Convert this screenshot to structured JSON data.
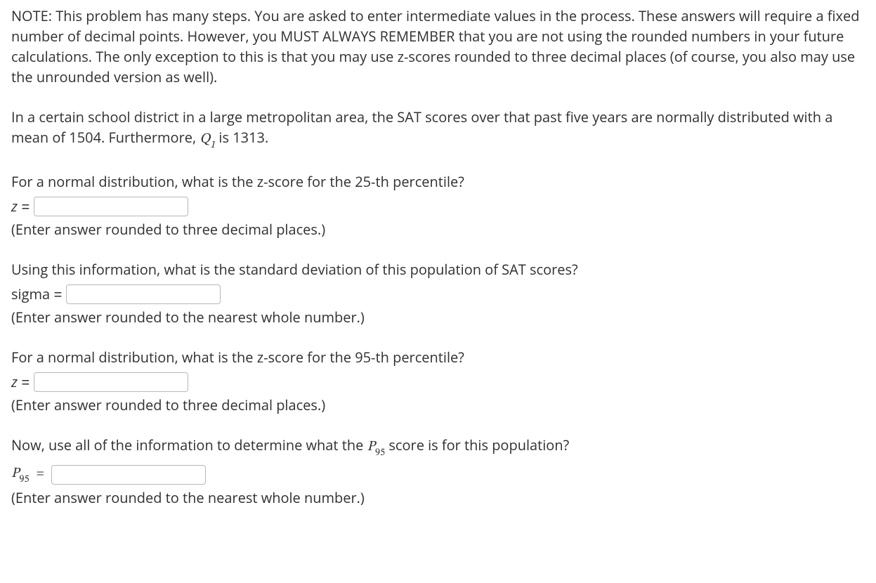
{
  "note": {
    "text": "NOTE: This problem has many steps. You are asked to enter intermediate values in the process. These answers will require a fixed number of decimal points. However, you MUST ALWAYS REMEMBER that you are not using the rounded numbers in your future calculations. The only exception to this is that you may use z-scores rounded to three decimal places (of course, you also may use the unrounded version as well)."
  },
  "scenario": {
    "prefix": "In a certain school district in a large metropolitan area, the SAT scores over that past five years are normally distributed with a mean of 1504. Furthermore, ",
    "q1_symbol_base": "Q",
    "q1_symbol_sub": "1",
    "suffix": " is 1313."
  },
  "q1": {
    "prompt": "For a normal distribution, what is the z-score for the 25-th percentile?",
    "label": "z",
    "eq": " = ",
    "hint": "(Enter answer rounded to three decimal places.)"
  },
  "q2": {
    "prompt": "Using this information, what is the standard deviation of this population of SAT scores?",
    "label": "sigma",
    "eq": " = ",
    "hint": "(Enter answer rounded to the nearest whole number.)"
  },
  "q3": {
    "prompt": "For a normal distribution, what is the z-score for the 95-th percentile?",
    "label": "z",
    "eq": " = ",
    "hint": "(Enter answer rounded to three decimal places.)"
  },
  "q4": {
    "prompt_prefix": "Now, use all of the information to determine what the ",
    "p95_base": "P",
    "p95_sub": "95",
    "prompt_suffix": " score is for this population?",
    "label_base": "P",
    "label_sub": "95",
    "eq": "=",
    "hint": "(Enter answer rounded to the nearest whole number.)"
  }
}
